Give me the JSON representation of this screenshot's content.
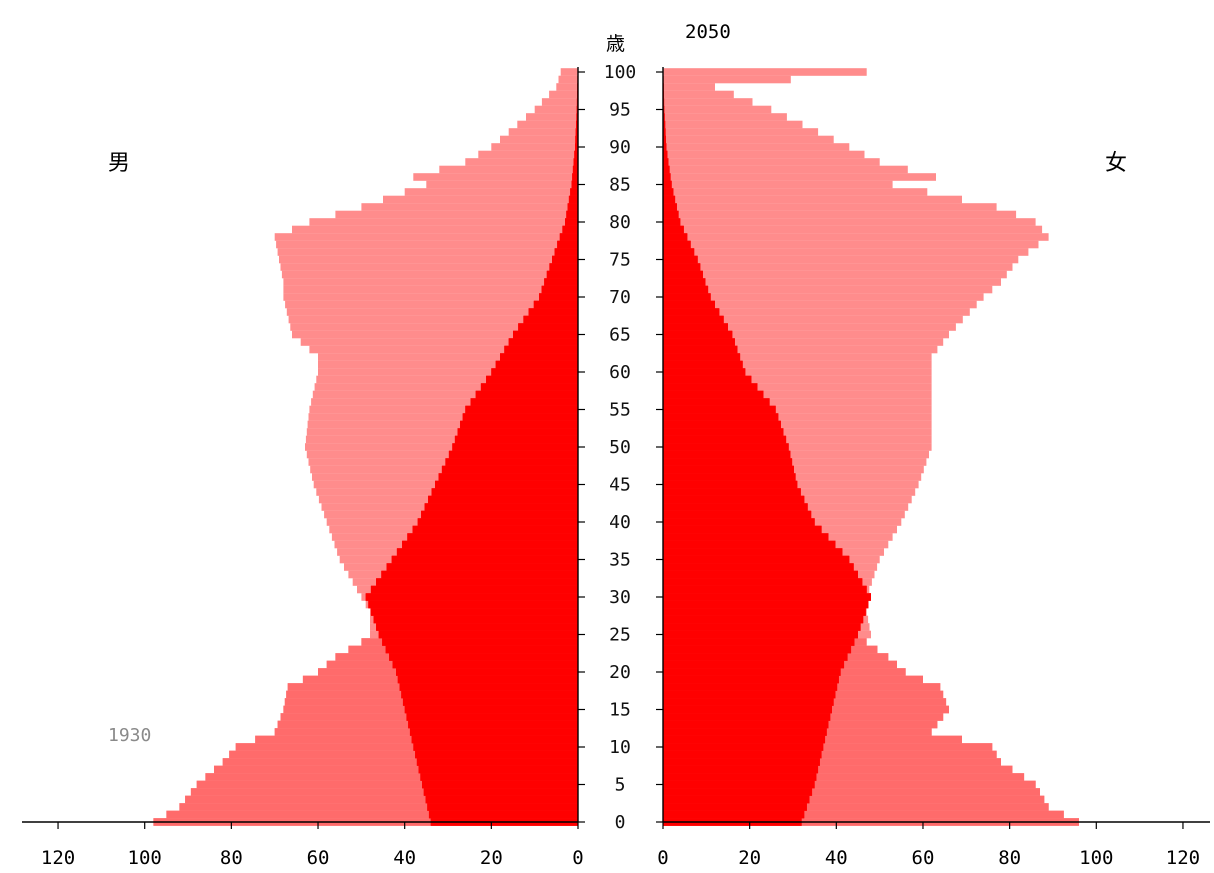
{
  "chart_data": {
    "type": "population_pyramid",
    "title": "2050",
    "age_unit_label": "歳",
    "male_label": "男",
    "female_label": "女",
    "overlay_year_label": "1930",
    "age_ticks": [
      0,
      5,
      10,
      15,
      20,
      25,
      30,
      35,
      40,
      45,
      50,
      55,
      60,
      65,
      70,
      75,
      80,
      85,
      90,
      95,
      100
    ],
    "x_ticks": [
      0,
      20,
      40,
      60,
      80,
      100,
      120
    ],
    "xlim": [
      0,
      130
    ],
    "ylim": [
      0,
      100
    ],
    "colors": {
      "series_2050": "#ff8c8c",
      "series_1930": "#ff0000",
      "overlap": "#ff6b6b"
    },
    "series": [
      {
        "name": "2050",
        "age_points": [
          0,
          2,
          5,
          8,
          10,
          12,
          15,
          18,
          20,
          22,
          24,
          25,
          28,
          30,
          35,
          40,
          45,
          50,
          55,
          60,
          62,
          65,
          70,
          72,
          75,
          78,
          80,
          82,
          85,
          86,
          88,
          90,
          95,
          98,
          100
        ],
        "male": [
          98,
          92,
          88,
          82,
          79,
          70,
          68,
          67,
          60,
          56,
          50,
          48,
          48,
          50,
          55,
          58,
          61,
          63,
          62,
          60,
          60,
          66,
          68,
          68,
          69,
          70,
          62,
          50,
          35,
          38,
          26,
          20,
          10,
          5,
          4
        ],
        "female": [
          96,
          89,
          86,
          78,
          76,
          62,
          66,
          64,
          56,
          52,
          47,
          48,
          47,
          47,
          50,
          55,
          59,
          62,
          62,
          62,
          62,
          66,
          74,
          78,
          82,
          89,
          86,
          77,
          53,
          63,
          50,
          43,
          25,
          12,
          47
        ]
      },
      {
        "name": "1930",
        "age_points": [
          0,
          5,
          10,
          15,
          20,
          25,
          30,
          35,
          40,
          45,
          50,
          55,
          60,
          65,
          70,
          75,
          80,
          85,
          90,
          95,
          100
        ],
        "male": [
          34,
          36,
          38,
          40,
          42,
          46,
          49,
          43,
          37,
          33,
          29,
          26,
          20,
          15,
          9,
          6,
          3,
          1.5,
          0.7,
          0.3,
          0.1
        ],
        "female": [
          32,
          35,
          37,
          39,
          41,
          45,
          48,
          43,
          35,
          31,
          29,
          26,
          19,
          16,
          11,
          8,
          4,
          2,
          0.8,
          0.3,
          0.1
        ]
      }
    ]
  }
}
